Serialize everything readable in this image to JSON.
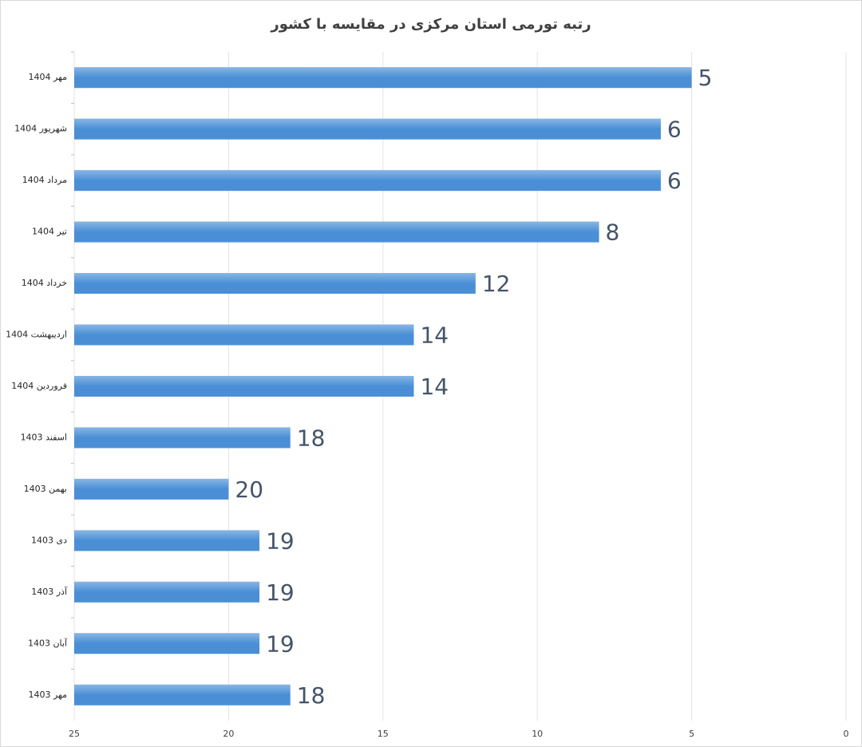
{
  "chart_data": {
    "type": "bar",
    "orientation": "horizontal",
    "title": "رتبه تورمی استان مرکزی در مقایسه با کشور",
    "categories": [
      "مهر 1404",
      "شهریور 1404",
      "مرداد 1404",
      "تیر 1404",
      "خرداد 1404",
      "اردیبهشت 1404",
      "فروردین 1404",
      "اسفند 1403",
      "بهمن 1403",
      "دی 1403",
      "آذر 1403",
      "آبان 1403",
      "مهر 1403"
    ],
    "values": [
      5,
      6,
      6,
      8,
      12,
      14,
      14,
      18,
      20,
      19,
      19,
      19,
      18
    ],
    "color": "#4a8fd6",
    "xlim": [
      25,
      0
    ],
    "xticks": [
      25,
      20,
      15,
      10,
      5,
      0
    ],
    "grid": true
  }
}
